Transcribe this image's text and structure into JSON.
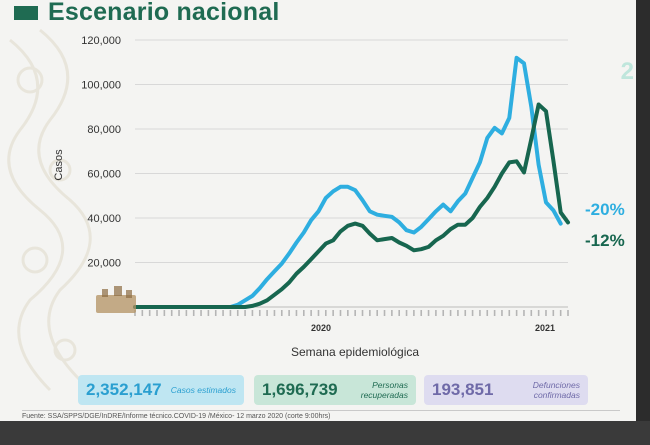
{
  "header": {
    "title": "Escenario nacional"
  },
  "colors": {
    "estimated": "#2eaee0",
    "recovered": "#17664f",
    "title": "#1f6b52",
    "deaths": "#6f6aa8"
  },
  "chart_data": {
    "type": "line",
    "ylabel": "Casos",
    "xlabel": "Semana epidemiológica",
    "ylim": [
      0,
      120000
    ],
    "yticks": [
      0,
      20000,
      40000,
      60000,
      80000,
      100000,
      120000
    ],
    "ytick_labels": [
      "",
      "20,000",
      "40,000",
      "60,000",
      "80,000",
      "100,000",
      "120,000"
    ],
    "year_labels": [
      "2020",
      "2021"
    ],
    "grid": true,
    "series": [
      {
        "key": "estimated",
        "values": [
          0,
          0,
          0,
          0,
          0,
          0,
          0,
          0,
          0,
          0,
          0,
          0,
          0,
          0,
          1000,
          3000,
          5000,
          8500,
          12500,
          16000,
          19500,
          24000,
          29000,
          33500,
          39000,
          43000,
          49000,
          52000,
          54000,
          54000,
          52500,
          48000,
          43000,
          41500,
          41000,
          40500,
          38000,
          34500,
          33500,
          36000,
          39500,
          43000,
          46000,
          43000,
          47500,
          51000,
          58000,
          65000,
          76000,
          80500,
          78000,
          85000,
          112000,
          109500,
          90000,
          64000,
          47000,
          43500,
          37500
        ],
        "annotation": "-20%"
      },
      {
        "key": "recovered",
        "values": [
          0,
          0,
          0,
          0,
          0,
          0,
          0,
          0,
          0,
          0,
          0,
          0,
          0,
          0,
          0,
          0,
          500,
          1500,
          3000,
          5500,
          8000,
          11000,
          15000,
          18000,
          21500,
          25000,
          28500,
          30000,
          34000,
          36500,
          37500,
          36500,
          33000,
          30000,
          30500,
          31000,
          29000,
          27500,
          25500,
          26000,
          27000,
          30000,
          32000,
          35000,
          37000,
          37000,
          40000,
          45000,
          49000,
          54000,
          60000,
          65000,
          65500,
          60500,
          75500,
          91000,
          88000,
          66000,
          42500,
          38000
        ],
        "annotation": "-12%"
      }
    ]
  },
  "stats": {
    "cases_value": "2,352,147",
    "cases_label": "Casos estimados",
    "recovered_value": "1,696,739",
    "recovered_label": "Personas recuperadas",
    "deaths_value": "193,851",
    "deaths_label": "Defunciones confirmadas"
  },
  "source_text": "Fuente: SSA/SPPS/DGE/InDRE/Informe técnico.COVID-19 /México- 12 marzo 2020 (corte 9:00hrs)",
  "cut_digit": "2"
}
